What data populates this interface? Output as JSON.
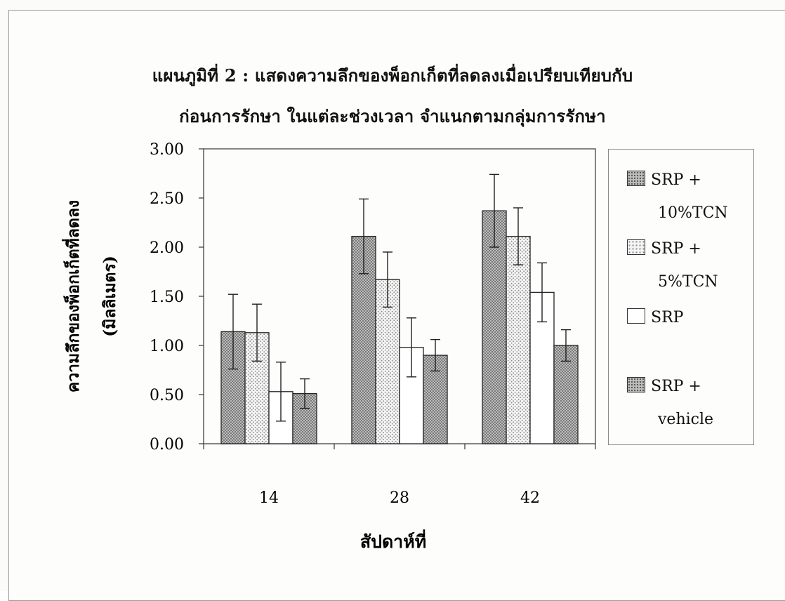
{
  "chart_data": {
    "type": "bar",
    "title_lines": [
      "แผนภูมิที่ 2 : แสดงความลึกของพ็อกเก็ตที่ลดลงเมื่อเปรียบเทียบกับ",
      "ก่อนการรักษา ในแต่ละช่วงเวลา จำแนกตามกลุ่มการรักษา"
    ],
    "xlabel": "สัปดาห์ที่",
    "ylabel_lines": [
      "ความลึกของพ็อกเก็ตที่ลดลง",
      "(มิลลิเมตร)"
    ],
    "categories": [
      "14",
      "28",
      "42"
    ],
    "ylim": [
      0,
      3.0
    ],
    "yticks": [
      "0.00",
      "0.50",
      "1.00",
      "1.50",
      "2.00",
      "2.50",
      "3.00"
    ],
    "grid": false,
    "legend_position": "right",
    "series": [
      {
        "name": "SRP + 10%TCN",
        "legend_lines": [
          "SRP +",
          "10%TCN"
        ],
        "pattern": "dark-dots",
        "values": [
          1.14,
          2.11,
          2.37
        ],
        "errors": [
          0.38,
          0.38,
          0.37
        ]
      },
      {
        "name": "SRP + 5%TCN",
        "legend_lines": [
          "SRP +",
          "5%TCN"
        ],
        "pattern": "light-dots",
        "values": [
          1.13,
          1.67,
          2.11
        ],
        "errors": [
          0.29,
          0.28,
          0.29
        ]
      },
      {
        "name": "SRP",
        "legend_lines": [
          "SRP",
          ""
        ],
        "pattern": "white",
        "values": [
          0.53,
          0.98,
          1.54
        ],
        "errors": [
          0.3,
          0.3,
          0.3
        ]
      },
      {
        "name": "SRP + vehicle",
        "legend_lines": [
          "SRP +",
          "vehicle"
        ],
        "pattern": "dark-dots",
        "values": [
          0.51,
          0.9,
          1.0
        ],
        "errors": [
          0.15,
          0.16,
          0.16
        ]
      }
    ]
  }
}
